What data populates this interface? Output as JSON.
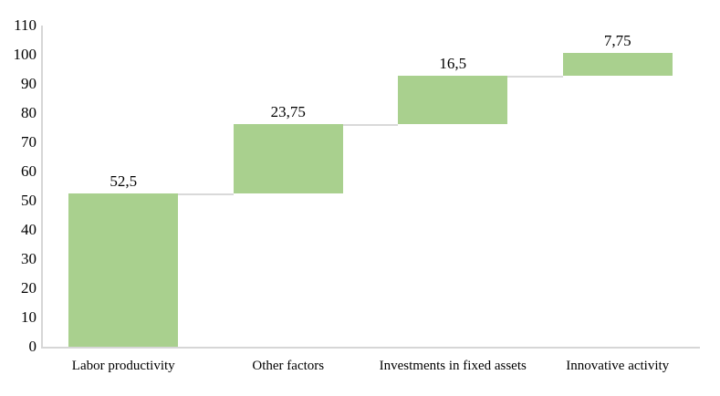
{
  "chart_data": {
    "type": "bar",
    "subtype": "waterfall",
    "title": "",
    "xlabel": "",
    "ylabel": "",
    "categories": [
      "Labor productivity",
      "Other factors",
      "Investments in fixed assets",
      "Innovative activity"
    ],
    "values": [
      52.5,
      23.75,
      16.5,
      7.75
    ],
    "value_labels": [
      "52,5",
      "23,75",
      "16,5",
      "7,75"
    ],
    "cumulative": [
      52.5,
      76.25,
      92.75,
      100.5
    ],
    "ylim": [
      0,
      110
    ],
    "y_ticks": [
      0,
      10,
      20,
      30,
      40,
      50,
      60,
      70,
      80,
      90,
      100,
      110
    ],
    "grid": false,
    "legend": false,
    "bar_color": "#a9d08e",
    "connector_color": "#d9d9d9",
    "axis_color": "#d6d6d6",
    "text_color": "#000000"
  }
}
